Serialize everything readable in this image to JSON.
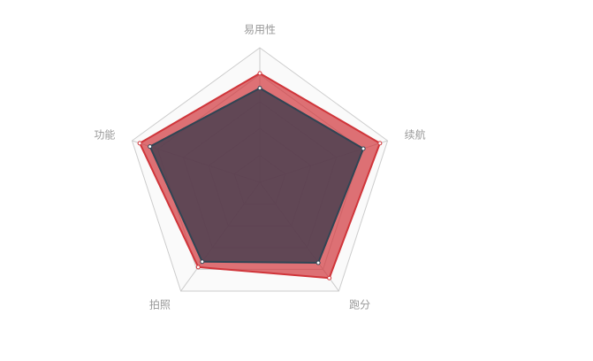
{
  "chart_data": {
    "type": "radar",
    "indicators": [
      "易用性",
      "续航",
      "跑分",
      "拍照",
      "功能"
    ],
    "max": 100,
    "split_number": 5,
    "series": [
      {
        "values": [
          81,
          94,
          88,
          78,
          94
        ],
        "color": "#d0353a",
        "area_color": "#d0353a",
        "area_opacity": 0.7
      },
      {
        "values": [
          70,
          81,
          74,
          73,
          86
        ],
        "color": "#2f4554",
        "area_color": "#4b3f50",
        "area_opacity": 0.85
      }
    ],
    "grid": true
  },
  "colors": {
    "split_line": "#cccccc",
    "split_area_odd": "#ffffff",
    "split_area_even": "#fafafa",
    "axis_label": "#999999"
  }
}
